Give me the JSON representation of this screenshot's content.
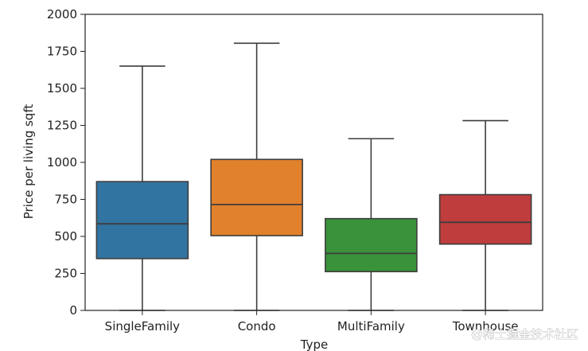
{
  "chart_data": {
    "type": "box",
    "title": "",
    "xlabel": "Type",
    "ylabel": "Price per living sqft",
    "ylim": [
      0,
      2000
    ],
    "yticks": [
      0,
      250,
      500,
      750,
      1000,
      1250,
      1500,
      1750,
      2000
    ],
    "grid": false,
    "categories": [
      "SingleFamily",
      "Condo",
      "MultiFamily",
      "Townhouse"
    ],
    "boxes": [
      {
        "name": "SingleFamily",
        "whisker_low": 0,
        "q1": 350,
        "median": 585,
        "q3": 870,
        "whisker_high": 1650,
        "color": "#3274a1"
      },
      {
        "name": "Condo",
        "whisker_low": 0,
        "q1": 505,
        "median": 715,
        "q3": 1020,
        "whisker_high": 1805,
        "color": "#e1812c"
      },
      {
        "name": "MultiFamily",
        "whisker_low": 0,
        "q1": 262,
        "median": 385,
        "q3": 620,
        "whisker_high": 1160,
        "color": "#3a923a"
      },
      {
        "name": "Townhouse",
        "whisker_low": 0,
        "q1": 448,
        "median": 595,
        "q3": 782,
        "whisker_high": 1282,
        "color": "#c03d3e"
      }
    ]
  },
  "watermark": "@稀土掘金技术社区"
}
